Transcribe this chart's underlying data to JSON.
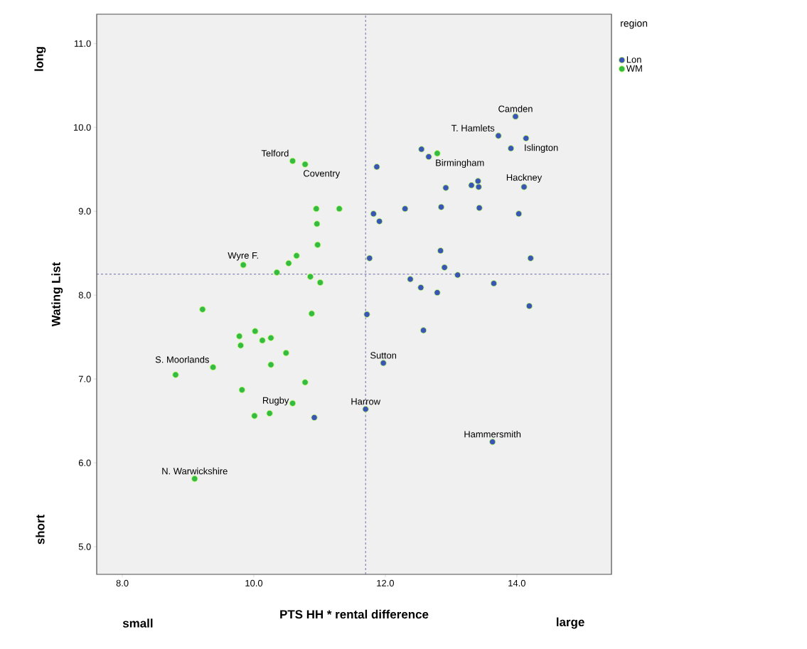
{
  "chart_data": {
    "type": "scatter",
    "xlabel": "PTS HH * rental difference",
    "ylabel": "Wating List",
    "legend_title": "region",
    "xlim": [
      7.61,
      15.44
    ],
    "ylim": [
      4.67,
      11.35
    ],
    "xticks": [
      {
        "value": 8,
        "label": "8.0"
      },
      {
        "value": 10,
        "label": "10.0"
      },
      {
        "value": 12,
        "label": "12.0"
      },
      {
        "value": 14,
        "label": "14.0"
      }
    ],
    "yticks": [
      {
        "value": 5,
        "label": "5.0"
      },
      {
        "value": 6,
        "label": "6.0"
      },
      {
        "value": 7,
        "label": "7.0"
      },
      {
        "value": 8,
        "label": "8.0"
      },
      {
        "value": 9,
        "label": "9.0"
      },
      {
        "value": 10,
        "label": "10.0"
      },
      {
        "value": 11,
        "label": "11.0"
      }
    ],
    "grid": false,
    "legend": "top right",
    "marker": "circle",
    "series": [
      {
        "name": "Lon",
        "color": "#3b55b5",
        "x": [
          10.92,
          13.98,
          13.72,
          14.14,
          13.91,
          12.55,
          12.66,
          11.87,
          13.42,
          12.92,
          13.31,
          13.41,
          14.11,
          12.3,
          12.85,
          13.43,
          14.03,
          11.82,
          11.91,
          12.84,
          11.76,
          14.21,
          12.9,
          13.1,
          12.38,
          12.54,
          12.79,
          13.65,
          14.19,
          11.72,
          12.58,
          11.97,
          11.7,
          13.63
        ],
        "values": [
          6.54,
          10.13,
          9.9,
          9.87,
          9.75,
          9.74,
          9.65,
          9.53,
          9.29,
          9.28,
          9.31,
          9.36,
          9.29,
          9.03,
          9.05,
          9.04,
          8.97,
          8.97,
          8.88,
          8.53,
          8.44,
          8.44,
          8.33,
          8.24,
          8.19,
          8.09,
          8.03,
          8.14,
          7.87,
          7.77,
          7.58,
          7.19,
          6.64,
          6.25
        ]
      },
      {
        "name": "WM",
        "color": "#33bb44",
        "x": [
          10.59,
          10.78,
          10.95,
          11.3,
          10.96,
          10.97,
          10.65,
          10.53,
          9.84,
          10.35,
          10.86,
          11.01,
          9.22,
          10.88,
          10.02,
          9.78,
          9.8,
          10.13,
          10.26,
          10.49,
          9.38,
          8.81,
          10.26,
          10.78,
          9.82,
          10.59,
          10.01,
          10.24,
          9.1,
          12.79
        ],
        "values": [
          9.6,
          9.56,
          9.03,
          9.03,
          8.85,
          8.6,
          8.47,
          8.38,
          8.36,
          8.27,
          8.22,
          8.15,
          7.83,
          7.78,
          7.57,
          7.51,
          7.4,
          7.46,
          7.49,
          7.31,
          7.14,
          7.05,
          7.17,
          6.96,
          6.87,
          6.71,
          6.56,
          6.59,
          5.81,
          9.69
        ]
      }
    ],
    "ref_lines": [
      {
        "axis": "x",
        "value": 11.7,
        "color": "#5a5aa0",
        "line_style": "dashed"
      },
      {
        "axis": "y",
        "value": 8.25,
        "color": "#5a5aa0",
        "line_style": "dashed"
      }
    ],
    "annotations": [
      {
        "text": "Camden",
        "x": 13.98,
        "y": 10.13
      },
      {
        "text": "T. Hamlets",
        "x": 13.72,
        "y": 9.9
      },
      {
        "text": "Islington",
        "x": 14.14,
        "y": 9.87
      },
      {
        "text": "Birmingham",
        "x": 12.79,
        "y": 9.69
      },
      {
        "text": "Hackney",
        "x": 14.11,
        "y": 9.29
      },
      {
        "text": "Telford",
        "x": 10.59,
        "y": 9.6
      },
      {
        "text": "Coventry",
        "x": 10.78,
        "y": 9.56
      },
      {
        "text": "Wyre F.",
        "x": 9.84,
        "y": 8.36
      },
      {
        "text": "S. Moorlands",
        "x": 9.38,
        "y": 7.14
      },
      {
        "text": "Rugby",
        "x": 10.59,
        "y": 6.71
      },
      {
        "text": "Harrow",
        "x": 11.7,
        "y": 6.64
      },
      {
        "text": "Sutton",
        "x": 11.97,
        "y": 7.19
      },
      {
        "text": "Hammersmith",
        "x": 13.63,
        "y": 6.25
      },
      {
        "text": "N. Warwickshire",
        "x": 9.1,
        "y": 5.81
      },
      "long",
      "short",
      "small",
      "large"
    ]
  }
}
